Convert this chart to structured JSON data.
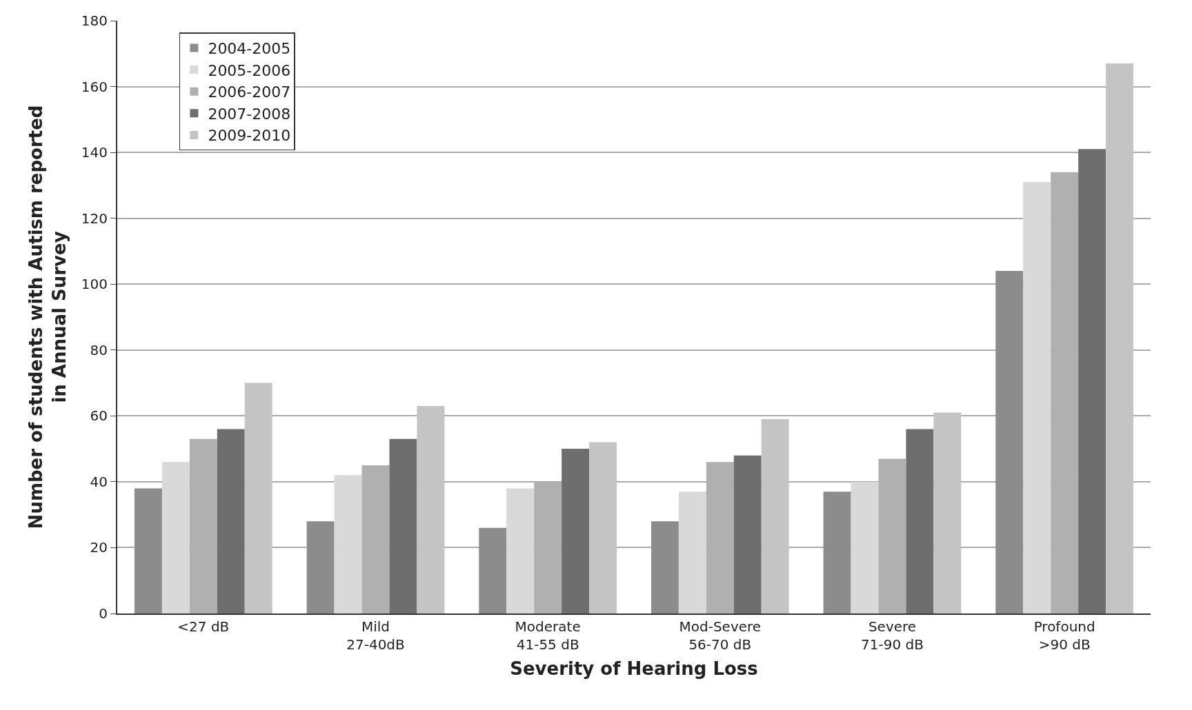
{
  "chart_data": {
    "type": "bar",
    "xlabel": "Severity of Hearing Loss",
    "ylabel": "Number of students with Autism reported\nin Annual Survey",
    "categories": [
      "<27 dB",
      "Mild\n27-40dB",
      "Moderate\n41-55 dB",
      "Mod-Severe\n56-70 dB",
      "Severe\n71-90 dB",
      "Profound\n>90 dB"
    ],
    "series": [
      {
        "name": "2004-2005",
        "color": "#8c8c8c",
        "values": [
          38,
          28,
          26,
          28,
          37,
          104
        ]
      },
      {
        "name": "2005-2006",
        "color": "#d9d9d9",
        "values": [
          46,
          42,
          38,
          37,
          40,
          131
        ]
      },
      {
        "name": "2006-2007",
        "color": "#b0b0b0",
        "values": [
          53,
          45,
          40,
          46,
          47,
          134
        ]
      },
      {
        "name": "2007-2008",
        "color": "#6e6e6e",
        "values": [
          56,
          53,
          50,
          48,
          56,
          141
        ]
      },
      {
        "name": "2009-2010",
        "color": "#c4c4c4",
        "values": [
          70,
          63,
          52,
          59,
          61,
          167
        ]
      }
    ],
    "ylim": [
      0,
      180
    ],
    "yticks": [
      0,
      20,
      40,
      60,
      80,
      100,
      120,
      140,
      160,
      180
    ],
    "grid": "y",
    "legend": "top left"
  }
}
